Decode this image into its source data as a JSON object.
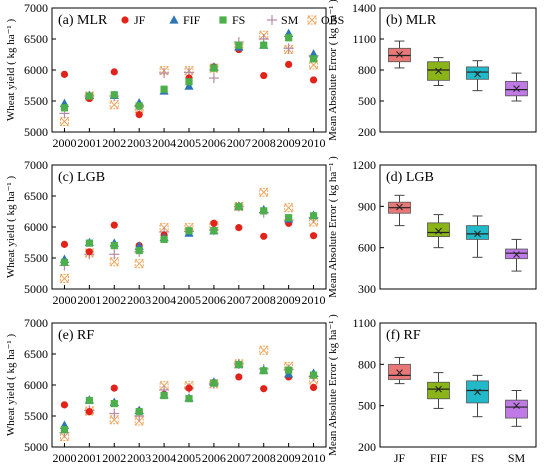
{
  "chart_data": [
    {
      "type": "scatter",
      "panel_label": "(a) MLR",
      "ylabel": "Wheat yield ( kg ha⁻¹ )",
      "x": [
        2000,
        2001,
        2002,
        2003,
        2004,
        2005,
        2006,
        2007,
        2008,
        2009,
        2010
      ],
      "x_tick_labels": [
        "2000",
        "2001",
        "2002",
        "2003",
        "2004",
        "2005",
        "2006",
        "2007",
        "2008",
        "2009",
        "2010"
      ],
      "ylim": [
        5000,
        7000
      ],
      "y_ticks": [
        5000,
        5500,
        6000,
        6500,
        7000
      ],
      "legend_placement": "top",
      "series": [
        {
          "name": "JF",
          "marker": "circle",
          "color": "#e2231a",
          "values": [
            5930,
            5540,
            5970,
            5280,
            5660,
            5870,
            6050,
            6330,
            5910,
            6090,
            5840
          ]
        },
        {
          "name": "FIF",
          "marker": "triangle",
          "color": "#2e75b6",
          "values": [
            5460,
            5590,
            5590,
            5470,
            5660,
            5740,
            6050,
            6370,
            6400,
            6590,
            6260
          ]
        },
        {
          "name": "FS",
          "marker": "square",
          "color": "#4daf4a",
          "values": [
            5390,
            5580,
            5600,
            5420,
            5690,
            5810,
            6030,
            6400,
            6400,
            6520,
            6180
          ]
        },
        {
          "name": "SM",
          "marker": "plus",
          "color": "#b68aa6",
          "values": [
            5300,
            5580,
            5580,
            5420,
            5950,
            5960,
            5870,
            6450,
            6500,
            6350,
            6230
          ]
        },
        {
          "name": "OBS",
          "marker": "xsquare",
          "color": "#f0a45a",
          "values": [
            5170,
            5580,
            5440,
            5380,
            5990,
            5990,
            6030,
            6390,
            6560,
            6330,
            6080
          ]
        }
      ]
    },
    {
      "type": "scatter",
      "panel_label": "(c) LGB",
      "ylabel": "Wheat yield ( kg ha⁻¹ )",
      "x": [
        2000,
        2001,
        2002,
        2003,
        2004,
        2005,
        2006,
        2007,
        2008,
        2009,
        2010
      ],
      "x_tick_labels": [
        "2000",
        "2001",
        "2002",
        "2003",
        "2004",
        "2005",
        "2006",
        "2007",
        "2008",
        "2009",
        "2010"
      ],
      "ylim": [
        5000,
        7000
      ],
      "y_ticks": [
        5000,
        5500,
        6000,
        6500,
        7000
      ],
      "series": [
        {
          "name": "JF",
          "marker": "circle",
          "color": "#e2231a",
          "values": [
            5720,
            5600,
            6030,
            5700,
            5870,
            5930,
            6060,
            5990,
            5850,
            6060,
            5860
          ]
        },
        {
          "name": "FIF",
          "marker": "triangle",
          "color": "#2e75b6",
          "values": [
            5480,
            5750,
            5740,
            5690,
            5830,
            5900,
            5940,
            6330,
            6280,
            6130,
            6190
          ]
        },
        {
          "name": "FS",
          "marker": "square",
          "color": "#4daf4a",
          "values": [
            5430,
            5740,
            5700,
            5620,
            5800,
            5940,
            5940,
            6330,
            6260,
            6150,
            6180
          ]
        },
        {
          "name": "SM",
          "marker": "plus",
          "color": "#b68aa6",
          "values": [
            5380,
            5560,
            5560,
            5600,
            5920,
            5930,
            5950,
            6330,
            6230,
            6110,
            6150
          ]
        },
        {
          "name": "OBS",
          "marker": "xsquare",
          "color": "#f0a45a",
          "values": [
            5170,
            5580,
            5440,
            5410,
            5990,
            5990,
            6020,
            6330,
            6560,
            6310,
            6080
          ]
        }
      ]
    },
    {
      "type": "scatter",
      "panel_label": "(e) RF",
      "ylabel": "Wheat yield ( kg ha⁻¹ )",
      "x": [
        2000,
        2001,
        2002,
        2003,
        2004,
        2005,
        2006,
        2007,
        2008,
        2009,
        2010
      ],
      "x_tick_labels": [
        "2000",
        "2001",
        "2002",
        "2003",
        "2004",
        "2005",
        "2006",
        "2007",
        "2008",
        "2009",
        "2010"
      ],
      "ylim": [
        5000,
        7000
      ],
      "y_ticks": [
        5000,
        5500,
        6000,
        6500,
        7000
      ],
      "series": [
        {
          "name": "JF",
          "marker": "circle",
          "color": "#e2231a",
          "values": [
            5680,
            5570,
            5950,
            5580,
            5850,
            5950,
            6040,
            6130,
            5940,
            6130,
            5960
          ]
        },
        {
          "name": "FIF",
          "marker": "triangle",
          "color": "#2e75b6",
          "values": [
            5350,
            5760,
            5720,
            5590,
            5840,
            5790,
            6050,
            6330,
            6240,
            6180,
            6190
          ]
        },
        {
          "name": "FS",
          "marker": "square",
          "color": "#4daf4a",
          "values": [
            5280,
            5750,
            5700,
            5570,
            5830,
            5780,
            6030,
            6330,
            6230,
            6240,
            6160
          ]
        },
        {
          "name": "SM",
          "marker": "plus",
          "color": "#b68aa6",
          "values": [
            5230,
            5590,
            5540,
            5500,
            5920,
            5950,
            6020,
            6340,
            6260,
            6250,
            6140
          ]
        },
        {
          "name": "OBS",
          "marker": "xsquare",
          "color": "#f0a45a",
          "values": [
            5170,
            5580,
            5440,
            5420,
            5990,
            5990,
            6020,
            6340,
            6560,
            6300,
            6080
          ]
        }
      ]
    },
    {
      "type": "box",
      "panel_label": "(b) MLR",
      "ylabel": "Mean Absolute Error ( kg ha⁻¹ )",
      "categories": [
        "JF",
        "FIF",
        "FS",
        "SM"
      ],
      "ylim": [
        200,
        1400
      ],
      "y_ticks": [
        200,
        500,
        800,
        1100,
        1400
      ],
      "boxes": [
        {
          "name": "JF",
          "color": "#e87878",
          "whisker_low": 820,
          "q1": 880,
          "median": 940,
          "mean": 950,
          "q3": 1010,
          "whisker_high": 1080
        },
        {
          "name": "FIF",
          "color": "#8ab418",
          "whisker_low": 650,
          "q1": 700,
          "median": 800,
          "mean": 790,
          "q3": 880,
          "whisker_high": 920
        },
        {
          "name": "FS",
          "color": "#22b9c8",
          "whisker_low": 600,
          "q1": 710,
          "median": 780,
          "mean": 760,
          "q3": 830,
          "whisker_high": 890
        },
        {
          "name": "SM",
          "color": "#c07ae6",
          "whisker_low": 500,
          "q1": 550,
          "median": 610,
          "mean": 620,
          "q3": 690,
          "whisker_high": 770
        }
      ]
    },
    {
      "type": "box",
      "panel_label": "(d) LGB",
      "ylabel": "Mean Absolute Error ( kg ha⁻¹ )",
      "categories": [
        "JF",
        "FIF",
        "FS",
        "SM"
      ],
      "ylim": [
        300,
        1200
      ],
      "y_ticks": [
        300,
        600,
        900,
        1200
      ],
      "boxes": [
        {
          "name": "JF",
          "color": "#e87878",
          "whisker_low": 760,
          "q1": 850,
          "median": 890,
          "mean": 895,
          "q3": 930,
          "whisker_high": 980
        },
        {
          "name": "FIF",
          "color": "#8ab418",
          "whisker_low": 600,
          "q1": 680,
          "median": 710,
          "mean": 720,
          "q3": 780,
          "whisker_high": 840
        },
        {
          "name": "FS",
          "color": "#22b9c8",
          "whisker_low": 530,
          "q1": 660,
          "median": 700,
          "mean": 700,
          "q3": 760,
          "whisker_high": 830
        },
        {
          "name": "SM",
          "color": "#c07ae6",
          "whisker_low": 430,
          "q1": 520,
          "median": 560,
          "mean": 550,
          "q3": 590,
          "whisker_high": 660
        }
      ]
    },
    {
      "type": "box",
      "panel_label": "(f) RF",
      "ylabel": "Mean Absolute Error ( kg ha⁻¹ )",
      "categories": [
        "JF",
        "FIF",
        "FS",
        "SM"
      ],
      "ylim": [
        200,
        1100
      ],
      "y_ticks": [
        200,
        500,
        800,
        1100
      ],
      "boxes": [
        {
          "name": "JF",
          "color": "#e87878",
          "whisker_low": 660,
          "q1": 690,
          "median": 720,
          "mean": 740,
          "q3": 800,
          "whisker_high": 850
        },
        {
          "name": "FIF",
          "color": "#8ab418",
          "whisker_low": 480,
          "q1": 550,
          "median": 620,
          "mean": 620,
          "q3": 670,
          "whisker_high": 740
        },
        {
          "name": "FS",
          "color": "#22b9c8",
          "whisker_low": 420,
          "q1": 520,
          "median": 610,
          "mean": 600,
          "q3": 680,
          "whisker_high": 720
        },
        {
          "name": "SM",
          "color": "#c07ae6",
          "whisker_low": 350,
          "q1": 410,
          "median": 490,
          "mean": 500,
          "q3": 540,
          "whisker_high": 610
        }
      ]
    }
  ]
}
